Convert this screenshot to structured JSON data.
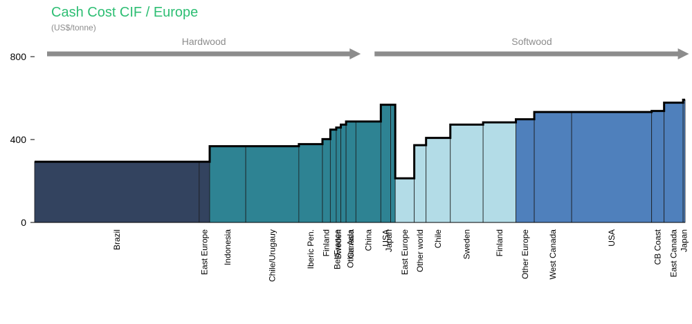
{
  "chart_data": {
    "type": "bar",
    "title": "Cash Cost CIF / Europe",
    "subtitle": "(US$/tonne)",
    "xlabel": "",
    "ylabel": "",
    "ylim": [
      0,
      800
    ],
    "yticks": [
      0,
      400,
      800
    ],
    "grid": false,
    "x_unit": "capacity",
    "groups": [
      {
        "label": "Hardwood",
        "range": [
          0,
          51
        ]
      },
      {
        "label": "Softwood",
        "range": [
          51,
          100
        ]
      }
    ],
    "categories": [
      "Brazil",
      "East Europe",
      "Indonesia",
      "Chile/Urugauy",
      "Iberic Pen.",
      "Finland",
      "Bel/France",
      "Sweden",
      "Other Asia",
      "Canada",
      "China",
      "USA",
      "Japan",
      "East Europe",
      "Other world",
      "Chile",
      "Sweden",
      "Finland",
      "Other Europe",
      "West Canada",
      "USA",
      "CB Coast",
      "East Canada",
      "Japan"
    ],
    "widths": [
      25.1,
      1.6,
      5.5,
      8.1,
      3.6,
      1.2,
      0.9,
      0.7,
      0.8,
      1.5,
      3.8,
      1.5,
      0.7,
      2.9,
      1.8,
      3.7,
      5.0,
      5.0,
      2.8,
      5.7,
      12.2,
      1.9,
      2.9,
      0.3
    ],
    "values": [
      293,
      293,
      368,
      368,
      378,
      402,
      448,
      458,
      472,
      487,
      487,
      568,
      568,
      213,
      373,
      408,
      472,
      483,
      498,
      533,
      533,
      538,
      578,
      592
    ],
    "colors": [
      "#33435F",
      "#33435F",
      "#2E8393",
      "#2E8393",
      "#2E8393",
      "#2E8393",
      "#2E8393",
      "#2E8393",
      "#2E8393",
      "#2E8393",
      "#2E8393",
      "#2E8393",
      "#2E8393",
      "#B3DCE7",
      "#B3DCE7",
      "#B3DCE7",
      "#B3DCE7",
      "#B3DCE7",
      "#4F80BC",
      "#4F80BC",
      "#4F80BC",
      "#4F80BC",
      "#4F80BC",
      "#4F80BC"
    ],
    "title_color": "#2DBE73",
    "arrow_color": "#8C8C8C"
  }
}
